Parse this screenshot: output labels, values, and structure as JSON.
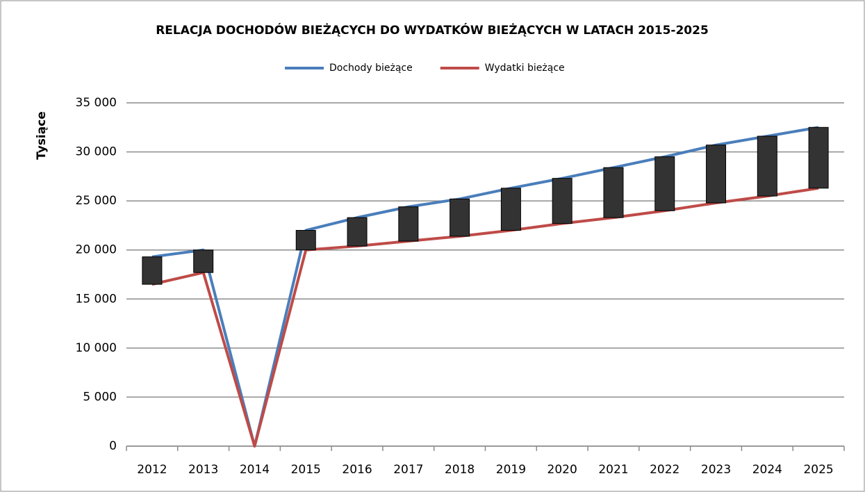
{
  "chart_data": {
    "type": "line",
    "title": "RELACJA DOCHODÓW BIEŻĄCYCH DO WYDATKÓW BIEŻĄCYCH W LATACH 2015-2025",
    "y_label": "Tysiące",
    "categories": [
      "2012",
      "2013",
      "2014",
      "2015",
      "2016",
      "2017",
      "2018",
      "2019",
      "2020",
      "2021",
      "2022",
      "2023",
      "2024",
      "2025"
    ],
    "series": [
      {
        "name": "Dochody bieżące",
        "color": "#4a7ebb",
        "values": [
          19300,
          20000,
          0,
          22000,
          23300,
          24400,
          25200,
          26300,
          27300,
          28400,
          29500,
          30700,
          31600,
          32500
        ]
      },
      {
        "name": "Wydatki bieżące",
        "color": "#be4b48",
        "values": [
          16500,
          17700,
          0,
          20000,
          20400,
          20900,
          21400,
          22000,
          22700,
          23300,
          24000,
          24800,
          25500,
          26300
        ]
      }
    ],
    "up_down_bars": true,
    "bar_color": "#333333",
    "ylim": [
      0,
      35000
    ],
    "yticks": [
      0,
      {
        "value": 5000,
        "label": "5 000"
      },
      {
        "value": 10000,
        "label": "10 000"
      },
      {
        "value": 15000,
        "label": "15 000"
      },
      {
        "value": 20000,
        "label": "20 000"
      },
      {
        "value": 25000,
        "label": "25 000"
      },
      {
        "value": 30000,
        "label": "30 000"
      },
      {
        "value": 35000,
        "label": "35 000"
      }
    ],
    "grid": true,
    "legend": "top"
  }
}
